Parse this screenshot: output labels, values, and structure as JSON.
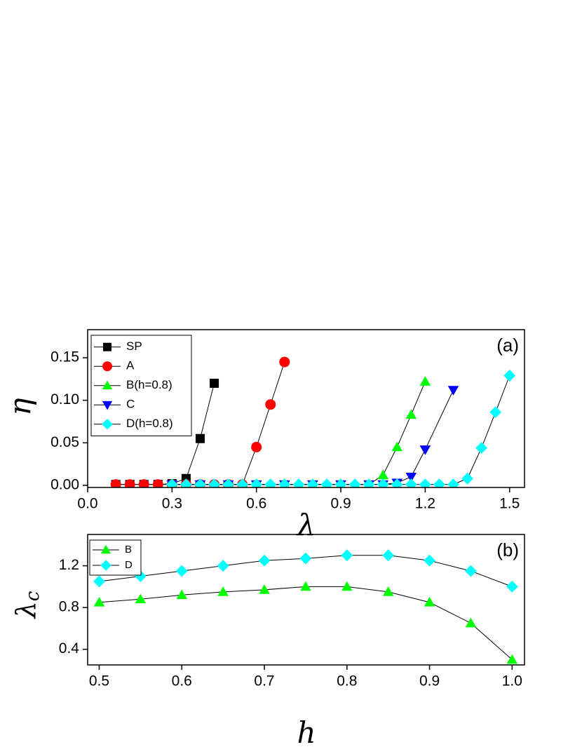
{
  "chart_data": [
    {
      "type": "line",
      "xlabel": "λ",
      "ylabel": "η",
      "annotation": "(a)",
      "xlim": [
        0,
        1.553
      ],
      "ylim": [
        -0.0025,
        0.183
      ],
      "xticks": [
        {
          "value": 0,
          "label": "0.0"
        },
        0.3,
        0.6,
        0.9,
        1.2,
        1.5
      ],
      "yticks": [
        {
          "value": 0,
          "label": "0.00"
        },
        0.05,
        {
          "value": 0.1,
          "label": "0.10"
        },
        0.15
      ],
      "legend": "upper left",
      "series": [
        {
          "name": "SP",
          "color": "#000000",
          "marker": "square",
          "x": [
            0.1,
            0.15,
            0.2,
            0.25,
            0.3,
            0.35,
            0.4,
            0.45
          ],
          "values": [
            0.001,
            0.001,
            0.001,
            0.001,
            0.002,
            0.008,
            0.055,
            0.12
          ]
        },
        {
          "name": "A",
          "color": "#ff0000",
          "marker": "circle",
          "x": [
            0.1,
            0.15,
            0.2,
            0.25,
            0.3,
            0.35,
            0.4,
            0.45,
            0.5,
            0.55,
            0.6,
            0.65,
            0.7
          ],
          "values": [
            0.001,
            0.001,
            0.001,
            0.001,
            0.001,
            0.001,
            0.001,
            0.001,
            0.001,
            0.001,
            0.045,
            0.095,
            0.145
          ]
        },
        {
          "name": "B(h=0.8)",
          "color": "#00ff00",
          "marker": "triangle",
          "x": [
            0.3,
            0.35,
            0.4,
            0.45,
            0.5,
            0.55,
            0.6,
            0.65,
            0.7,
            0.75,
            0.8,
            0.85,
            0.9,
            0.95,
            1.0,
            1.05,
            1.1,
            1.15,
            1.2
          ],
          "values": [
            0.001,
            0.001,
            0.001,
            0.001,
            0.001,
            0.001,
            0.001,
            0.001,
            0.001,
            0.001,
            0.001,
            0.001,
            0.001,
            0.001,
            0.001,
            0.012,
            0.045,
            0.083,
            0.122
          ]
        },
        {
          "name": "C",
          "color": "#0000ff",
          "marker": "triangle-down",
          "x": [
            0.3,
            0.4,
            0.5,
            0.6,
            0.7,
            0.8,
            0.9,
            1.0,
            1.05,
            1.1,
            1.15,
            1.2,
            1.3
          ],
          "values": [
            0.001,
            0.001,
            0.001,
            0.001,
            0.001,
            0.001,
            0.001,
            0.001,
            0.001,
            0.003,
            0.01,
            0.042,
            0.112
          ]
        },
        {
          "name": "D(h=0.8)",
          "color": "#00ffff",
          "marker": "diamond",
          "x": [
            0.3,
            0.35,
            0.4,
            0.45,
            0.5,
            0.55,
            0.6,
            0.65,
            0.7,
            0.75,
            0.8,
            0.85,
            0.9,
            0.95,
            1.0,
            1.05,
            1.1,
            1.15,
            1.2,
            1.25,
            1.3,
            1.35,
            1.4,
            1.45,
            1.5
          ],
          "values": [
            0.001,
            0.001,
            0.001,
            0.001,
            0.001,
            0.001,
            0.001,
            0.001,
            0.001,
            0.001,
            0.001,
            0.001,
            0.001,
            0.001,
            0.001,
            0.001,
            0.001,
            0.001,
            0.001,
            0.001,
            0.001,
            0.008,
            0.044,
            0.086,
            0.129
          ]
        }
      ]
    },
    {
      "type": "line",
      "xlabel": "h",
      "ylabel": {
        "text": "λ",
        "sub": "c"
      },
      "annotation": "(b)",
      "xlim": [
        0.486,
        1.015
      ],
      "ylim": [
        0.25,
        1.5
      ],
      "xticks": [
        0.5,
        0.6,
        0.7,
        0.8,
        0.9,
        {
          "value": 1,
          "label": "1.0"
        }
      ],
      "yticks": [
        0.4,
        0.8,
        1.2
      ],
      "legend": "upper left",
      "series": [
        {
          "name": "B",
          "color": "#00ff00",
          "marker": "triangle",
          "x": [
            0.5,
            0.55,
            0.6,
            0.65,
            0.7,
            0.75,
            0.8,
            0.85,
            0.9,
            0.95,
            1.0
          ],
          "values": [
            0.85,
            0.88,
            0.92,
            0.95,
            0.97,
            1.0,
            1.0,
            0.95,
            0.85,
            0.65,
            0.3
          ]
        },
        {
          "name": "D",
          "color": "#00ffff",
          "marker": "diamond",
          "x": [
            0.5,
            0.55,
            0.6,
            0.65,
            0.7,
            0.75,
            0.8,
            0.85,
            0.9,
            0.95,
            1.0
          ],
          "values": [
            1.05,
            1.1,
            1.15,
            1.2,
            1.25,
            1.27,
            1.3,
            1.3,
            1.25,
            1.15,
            1.0
          ]
        }
      ]
    }
  ]
}
